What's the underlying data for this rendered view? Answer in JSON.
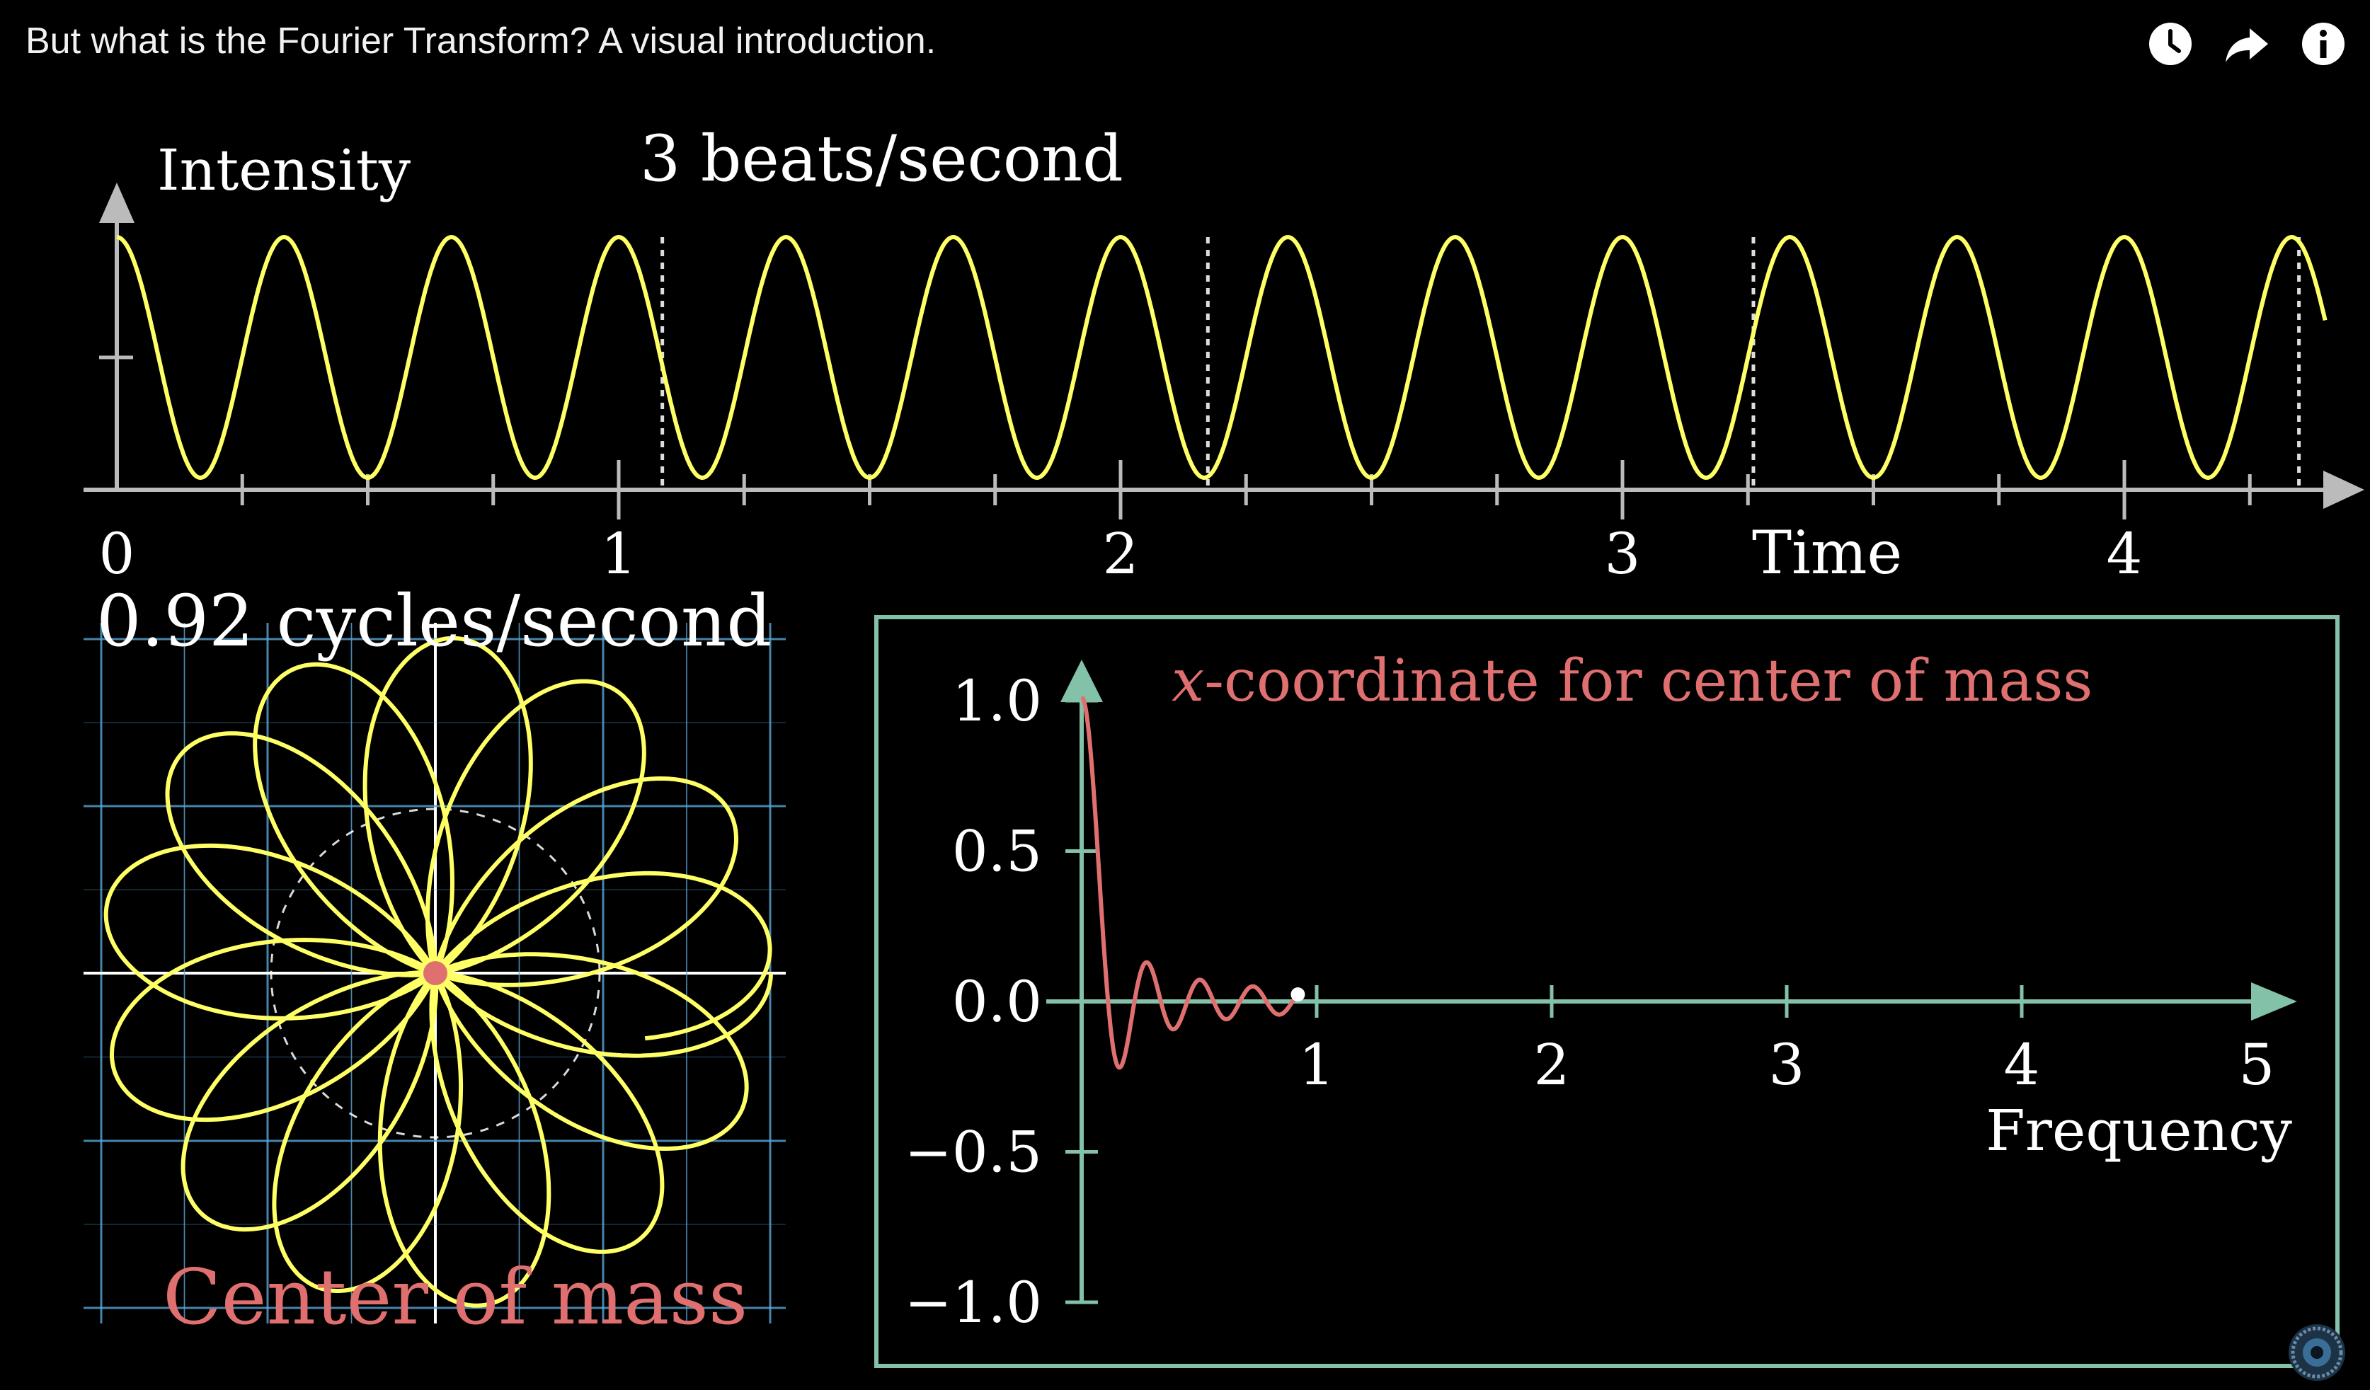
{
  "video": {
    "title": "But what is the Fourier Transform? A visual introduction."
  },
  "controls": {
    "watch_later_icon": "clock-icon",
    "share_icon": "share-arrow-icon",
    "info_icon": "info-icon"
  },
  "signal_panel": {
    "y_label": "Intensity",
    "x_label": "Time",
    "frequency_label": "3 beats/second",
    "beats_per_second": 3,
    "time_ticks": [
      "0",
      "1",
      "2",
      "3",
      "4"
    ],
    "x_range": [
      0,
      4.4
    ],
    "color": "#ffff66"
  },
  "winding_panel": {
    "winding_label": "0.92 cycles/second",
    "winding_frequency": 0.92,
    "center_label": "Center of mass",
    "curve_color": "#ffff66",
    "grid_color": "#58a6d6",
    "center_color": "#e07070"
  },
  "transform_panel": {
    "title_var": "x",
    "title_rest": "-coordinate for center of mass",
    "x_label": "Frequency",
    "y_ticks": [
      "1.0",
      "0.5",
      "0.0",
      "−0.5",
      "−1.0"
    ],
    "x_ticks": [
      "1",
      "2",
      "3",
      "4",
      "5"
    ],
    "x_range": [
      0,
      5
    ],
    "y_range": [
      -1,
      1
    ],
    "current_frequency": 0.92,
    "axis_color": "#83c1a8",
    "curve_color": "#e07070"
  }
}
